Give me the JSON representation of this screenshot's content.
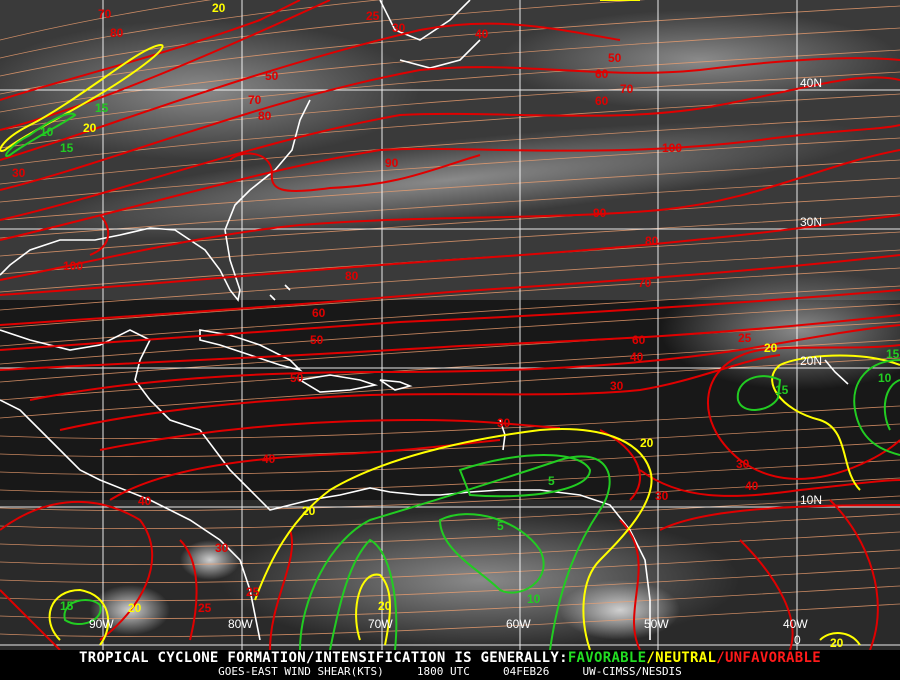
{
  "map": {
    "colors": {
      "favorable": "#22cc22",
      "neutral": "#ffff00",
      "unfavorable": "#e00000",
      "streamline": "#f0a070",
      "coast": "#ffffff",
      "grid": "#ffffff"
    },
    "lon_labels": [
      "90W",
      "80W",
      "70W",
      "60W",
      "50W",
      "40W"
    ],
    "lat_labels": [
      "40N",
      "30N",
      "20N",
      "10N",
      "0"
    ],
    "contour_labels": [
      {
        "text": "70",
        "level": "unfavorable"
      },
      {
        "text": "80",
        "level": "unfavorable"
      },
      {
        "text": "20",
        "level": "neutral"
      },
      {
        "text": "25",
        "level": "unfavorable"
      },
      {
        "text": "30",
        "level": "unfavorable"
      },
      {
        "text": "40",
        "level": "unfavorable"
      },
      {
        "text": "50",
        "level": "unfavorable"
      },
      {
        "text": "60",
        "level": "unfavorable"
      },
      {
        "text": "70",
        "level": "unfavorable"
      },
      {
        "text": "80",
        "level": "unfavorable"
      },
      {
        "text": "15",
        "level": "favorable"
      },
      {
        "text": "20",
        "level": "neutral"
      },
      {
        "text": "10",
        "level": "favorable"
      },
      {
        "text": "15",
        "level": "favorable"
      },
      {
        "text": "30",
        "level": "unfavorable"
      },
      {
        "text": "90",
        "level": "unfavorable"
      },
      {
        "text": "100",
        "level": "unfavorable"
      },
      {
        "text": "50",
        "level": "unfavorable"
      },
      {
        "text": "60",
        "level": "unfavorable"
      },
      {
        "text": "70",
        "level": "unfavorable"
      },
      {
        "text": "90",
        "level": "unfavorable"
      },
      {
        "text": "80",
        "level": "unfavorable"
      },
      {
        "text": "100",
        "level": "unfavorable"
      },
      {
        "text": "80",
        "level": "unfavorable"
      },
      {
        "text": "70",
        "level": "unfavorable"
      },
      {
        "text": "60",
        "level": "unfavorable"
      },
      {
        "text": "50",
        "level": "unfavorable"
      },
      {
        "text": "60",
        "level": "unfavorable"
      },
      {
        "text": "50",
        "level": "unfavorable"
      },
      {
        "text": "40",
        "level": "unfavorable"
      },
      {
        "text": "30",
        "level": "unfavorable"
      },
      {
        "text": "40",
        "level": "unfavorable"
      },
      {
        "text": "40",
        "level": "unfavorable"
      },
      {
        "text": "30",
        "level": "unfavorable"
      },
      {
        "text": "20",
        "level": "neutral"
      },
      {
        "text": "5",
        "level": "favorable"
      },
      {
        "text": "5",
        "level": "favorable"
      },
      {
        "text": "10",
        "level": "favorable"
      },
      {
        "text": "20",
        "level": "neutral"
      },
      {
        "text": "25",
        "level": "unfavorable"
      },
      {
        "text": "30",
        "level": "unfavorable"
      },
      {
        "text": "15",
        "level": "favorable"
      },
      {
        "text": "20",
        "level": "neutral"
      },
      {
        "text": "20",
        "level": "neutral"
      },
      {
        "text": "25",
        "level": "unfavorable"
      },
      {
        "text": "15",
        "level": "favorable"
      },
      {
        "text": "20",
        "level": "neutral"
      },
      {
        "text": "25",
        "level": "unfavorable"
      },
      {
        "text": "30",
        "level": "unfavorable"
      },
      {
        "text": "40",
        "level": "unfavorable"
      },
      {
        "text": "30",
        "level": "unfavorable"
      },
      {
        "text": "20",
        "level": "neutral"
      },
      {
        "text": "15",
        "level": "favorable"
      },
      {
        "text": "10",
        "level": "favorable"
      }
    ]
  },
  "footer": {
    "headline_prefix": "TROPICAL CYCLONE FORMATION/INTENSIFICATION IS GENERALLY:",
    "favorable": "FAVORABLE",
    "sep1": "/",
    "neutral": "NEUTRAL",
    "sep2": "/",
    "unfavorable": "UNFAVORABLE",
    "product": "GOES-EAST WIND SHEAR(KTS)",
    "time": "1800 UTC",
    "date": "04FEB26",
    "source": "UW-CIMSS/NESDIS"
  }
}
